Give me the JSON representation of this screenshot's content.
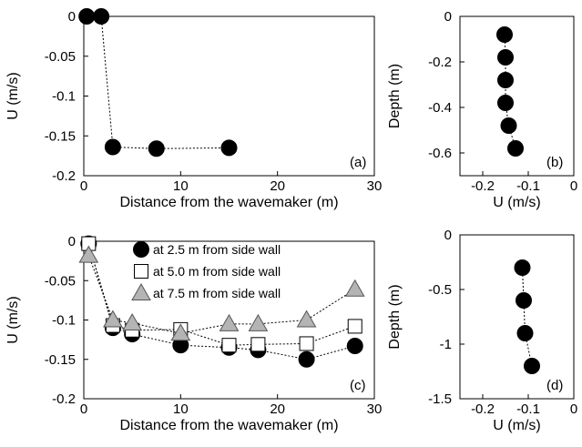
{
  "chart_data": [
    {
      "type": "scatter",
      "panel_label": "(a)",
      "xlabel": "Distance from the wavemaker (m)",
      "ylabel": "U (m/s)",
      "xlim": [
        0,
        30
      ],
      "ylim": [
        -0.2,
        0.0
      ],
      "xticks": [
        "0",
        "10",
        "20",
        "30"
      ],
      "yticks": [
        "0",
        "-0.05",
        "-0.1",
        "-0.15",
        "-0.2"
      ],
      "grid": false,
      "series": [
        {
          "marker": "filled-circle",
          "color": "#000000",
          "line": "dotted",
          "points": [
            {
              "x": 0.3,
              "y": 0.0
            },
            {
              "x": 1.8,
              "y": 0.0
            },
            {
              "x": 3.0,
              "y": -0.164
            },
            {
              "x": 7.5,
              "y": -0.166
            },
            {
              "x": 15.0,
              "y": -0.165
            }
          ]
        }
      ]
    },
    {
      "type": "scatter",
      "panel_label": "(b)",
      "xlabel": "U (m/s)",
      "ylabel": "Depth (m)",
      "xlim": [
        -0.25,
        0.0
      ],
      "ylim": [
        -0.7,
        0.0
      ],
      "xticks": [
        "-0.2",
        "-0.1",
        "0"
      ],
      "yticks": [
        "0",
        "-0.2",
        "-0.4",
        "-0.6"
      ],
      "grid": false,
      "series": [
        {
          "marker": "filled-circle",
          "color": "#000000",
          "line": "dotted",
          "points": [
            {
              "x": -0.152,
              "y": -0.08
            },
            {
              "x": -0.15,
              "y": -0.18
            },
            {
              "x": -0.15,
              "y": -0.28
            },
            {
              "x": -0.15,
              "y": -0.38
            },
            {
              "x": -0.143,
              "y": -0.48
            },
            {
              "x": -0.128,
              "y": -0.58
            }
          ]
        }
      ]
    },
    {
      "type": "scatter",
      "panel_label": "(c)",
      "xlabel": "Distance from the wavemaker (m)",
      "ylabel": "U (m/s)",
      "xlim": [
        0,
        30
      ],
      "ylim": [
        -0.2,
        0.0
      ],
      "xticks": [
        "0",
        "10",
        "20",
        "30"
      ],
      "yticks": [
        "0",
        "-0.05",
        "-0.1",
        "-0.15",
        "-0.2"
      ],
      "grid": false,
      "legend_position": "top-center",
      "series": [
        {
          "name": "at 2.5 m from side wall",
          "marker": "filled-circle",
          "color": "#000000",
          "line": "dotted",
          "points": [
            {
              "x": 0.5,
              "y": -0.003
            },
            {
              "x": 3.0,
              "y": -0.11
            },
            {
              "x": 5.0,
              "y": -0.118
            },
            {
              "x": 10.0,
              "y": -0.132
            },
            {
              "x": 15.0,
              "y": -0.135
            },
            {
              "x": 18.0,
              "y": -0.138
            },
            {
              "x": 23.0,
              "y": -0.15
            },
            {
              "x": 28.0,
              "y": -0.133
            }
          ]
        },
        {
          "name": "at 5.0 m from side wall",
          "marker": "open-square",
          "color": "#000000",
          "line": "dotted",
          "points": [
            {
              "x": 0.5,
              "y": -0.003
            },
            {
              "x": 3.0,
              "y": -0.107
            },
            {
              "x": 5.0,
              "y": -0.113
            },
            {
              "x": 10.0,
              "y": -0.112
            },
            {
              "x": 15.0,
              "y": -0.132
            },
            {
              "x": 18.0,
              "y": -0.131
            },
            {
              "x": 23.0,
              "y": -0.13
            },
            {
              "x": 28.0,
              "y": -0.108
            }
          ]
        },
        {
          "name": "at 7.5 m from side wall",
          "marker": "gray-triangle",
          "color": "#b4b4b4",
          "line": "dotted",
          "points": [
            {
              "x": 0.5,
              "y": -0.018
            },
            {
              "x": 3.0,
              "y": -0.1
            },
            {
              "x": 5.0,
              "y": -0.104
            },
            {
              "x": 10.0,
              "y": -0.117
            },
            {
              "x": 15.0,
              "y": -0.105
            },
            {
              "x": 18.0,
              "y": -0.105
            },
            {
              "x": 23.0,
              "y": -0.1
            },
            {
              "x": 28.0,
              "y": -0.061
            }
          ]
        }
      ]
    },
    {
      "type": "scatter",
      "panel_label": "(d)",
      "xlabel": "U (m/s)",
      "ylabel": "Depth (m)",
      "xlim": [
        -0.25,
        0.0
      ],
      "ylim": [
        -1.5,
        0.0
      ],
      "xticks": [
        "-0.2",
        "-0.1",
        "0"
      ],
      "yticks": [
        "0",
        "-0.5",
        "-1",
        "-1.5"
      ],
      "grid": false,
      "series": [
        {
          "marker": "filled-circle",
          "color": "#000000",
          "line": "dotted",
          "points": [
            {
              "x": -0.113,
              "y": -0.3
            },
            {
              "x": -0.11,
              "y": -0.6
            },
            {
              "x": -0.107,
              "y": -0.9
            },
            {
              "x": -0.092,
              "y": -1.2
            }
          ]
        }
      ]
    }
  ]
}
